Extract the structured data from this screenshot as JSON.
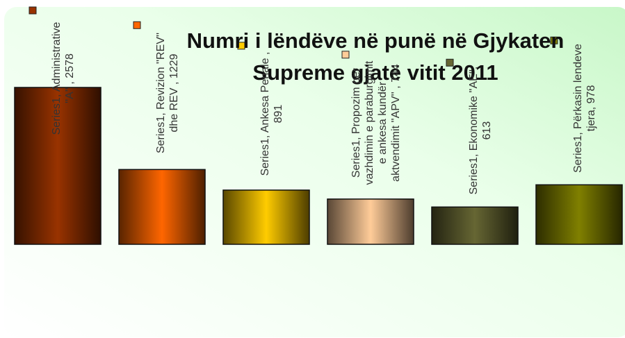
{
  "chart_data": {
    "type": "bar",
    "title": "Numri i lëndëve në punë në Gjykaten Supreme gjatë vitit 2011",
    "values": [
      2578,
      1229,
      891,
      744,
      613,
      978
    ],
    "value_labels": [
      "Series1, Administrative ''A'' , 2578",
      "Series1, Revizion ''REV'' dhe REV , 1229",
      "Series1, Ankesa Penale , 891",
      "Series1, Propozim për vazhdimin e paraburgimit e ankesa kundër aktvendimit ''APV'' , 744",
      "Series1, Ekonomike ''AE'', 613",
      "Series1, Përkasin lendeve tjera, 978"
    ],
    "colors": [
      "#993300",
      "#ff6600",
      "#ffcc00",
      "#ffcc99",
      "#666633",
      "#808000"
    ],
    "ylim": [
      0,
      3000
    ]
  }
}
